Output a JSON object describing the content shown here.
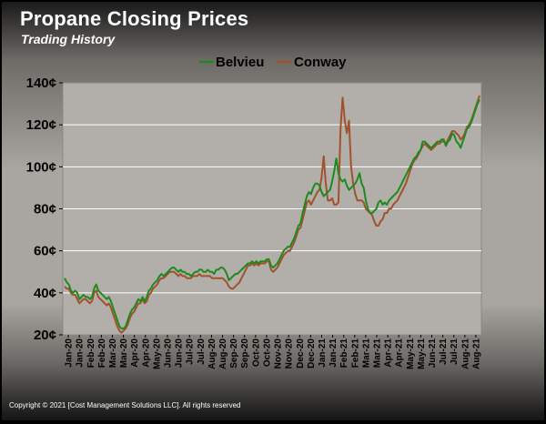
{
  "header": {
    "title": "Propane Closing Prices",
    "subtitle": "Trading History"
  },
  "footer": {
    "copyright": "Copyright © 2021 [Cost Management Solutions LLC].  All rights reserved"
  },
  "chart_data": {
    "type": "line",
    "title": "Propane Closing Prices",
    "subtitle": "Trading History",
    "legend_position": "top-center",
    "grid": true,
    "ylim": [
      20,
      140
    ],
    "y_ticks": [
      20,
      40,
      60,
      80,
      100,
      120,
      140
    ],
    "y_tick_labels": [
      "20¢",
      "40¢",
      "60¢",
      "80¢",
      "100¢",
      "120¢",
      "140¢"
    ],
    "x_tick_labels": [
      "Jan-20",
      "Jan-20",
      "Feb-20",
      "Feb-20",
      "Mar-20",
      "Mar-20",
      "Apr-20",
      "Apr-20",
      "May-20",
      "Jun-20",
      "Jun-20",
      "Jul-20",
      "Jul-20",
      "Aug-20",
      "Aug-20",
      "Sep-20",
      "Sep-20",
      "Oct-20",
      "Oct-20",
      "Nov-20",
      "Nov-20",
      "Dec-20",
      "Dec-20",
      "Jan-21",
      "Jan-21",
      "Feb-21",
      "Feb-21",
      "Mar-21",
      "Mar-21",
      "Apr-21",
      "Apr-21",
      "May-21",
      "May-21",
      "Jun-21",
      "Jul-21",
      "Jul-21",
      "Aug-21",
      "Aug-21"
    ],
    "series": [
      {
        "name": "Belvieu",
        "color": "#1e8a1e",
        "values": [
          47,
          45,
          44,
          41,
          40,
          41,
          40,
          37,
          38,
          39,
          38,
          38,
          37,
          38,
          42,
          44,
          41,
          40,
          39,
          38,
          37,
          38,
          36,
          33,
          30,
          27,
          24,
          23,
          23,
          24,
          27,
          30,
          32,
          33,
          35,
          37,
          36,
          38,
          36,
          38,
          41,
          42,
          44,
          45,
          46,
          48,
          49,
          48,
          49,
          50,
          51,
          52,
          52,
          51,
          50,
          51,
          50,
          50,
          49,
          49,
          48,
          49,
          50,
          50,
          51,
          51,
          50,
          50,
          51,
          50,
          50,
          49,
          51,
          51,
          52,
          52,
          51,
          49,
          46,
          47,
          48,
          49,
          49,
          50,
          51,
          52,
          53,
          54,
          54,
          55,
          54,
          55,
          54,
          55,
          55,
          55,
          56,
          56,
          53,
          52,
          53,
          54,
          56,
          58,
          60,
          61,
          62,
          62,
          64,
          66,
          69,
          72,
          73,
          78,
          82,
          86,
          88,
          87,
          90,
          92,
          92,
          91,
          88,
          86,
          87,
          88,
          89,
          93,
          98,
          104,
          97,
          94,
          93,
          94,
          91,
          89,
          90,
          91,
          92,
          94,
          97,
          92,
          90,
          84,
          80,
          78,
          78,
          79,
          80,
          83,
          84,
          82,
          83,
          82,
          84,
          85,
          86,
          87,
          88,
          90,
          92,
          94,
          96,
          98,
          100,
          102,
          104,
          105,
          107,
          108,
          112,
          112,
          111,
          110,
          109,
          110,
          111,
          112,
          112,
          113,
          113,
          110,
          112,
          113,
          116,
          115,
          112,
          111,
          109,
          112,
          115,
          118,
          119,
          121,
          124,
          127,
          130,
          132
        ]
      },
      {
        "name": "Conway",
        "color": "#a0522d",
        "values": [
          43,
          42,
          42,
          40,
          39,
          39,
          37,
          35,
          36,
          37,
          37,
          36,
          35,
          36,
          40,
          41,
          38,
          37,
          36,
          35,
          34,
          35,
          33,
          30,
          27,
          24,
          22,
          21,
          22,
          23,
          25,
          28,
          30,
          31,
          33,
          35,
          35,
          37,
          35,
          36,
          39,
          40,
          42,
          43,
          44,
          46,
          47,
          47,
          48,
          49,
          50,
          50,
          50,
          49,
          48,
          49,
          48,
          48,
          47,
          47,
          47,
          48,
          48,
          48,
          49,
          48,
          48,
          48,
          48,
          48,
          47,
          47,
          47,
          47,
          47,
          47,
          46,
          45,
          43,
          42,
          42,
          43,
          44,
          45,
          47,
          49,
          51,
          53,
          53,
          54,
          53,
          54,
          53,
          54,
          54,
          54,
          55,
          55,
          51,
          50,
          51,
          52,
          54,
          56,
          58,
          59,
          60,
          60,
          62,
          64,
          67,
          70,
          71,
          75,
          79,
          83,
          84,
          82,
          84,
          86,
          88,
          89,
          95,
          105,
          92,
          84,
          84,
          85,
          82,
          82,
          83,
          118,
          133,
          122,
          116,
          122,
          100,
          92,
          87,
          84,
          84,
          84,
          83,
          80,
          79,
          78,
          77,
          74,
          72,
          72,
          74,
          75,
          78,
          78,
          80,
          80,
          82,
          83,
          84,
          86,
          88,
          90,
          92,
          95,
          98,
          101,
          103,
          104,
          106,
          108,
          110,
          111,
          110,
          109,
          108,
          109,
          110,
          111,
          111,
          112,
          112,
          111,
          113,
          115,
          117,
          117,
          116,
          115,
          113,
          114,
          116,
          119,
          120,
          122,
          125,
          128,
          131,
          134
        ]
      }
    ]
  }
}
